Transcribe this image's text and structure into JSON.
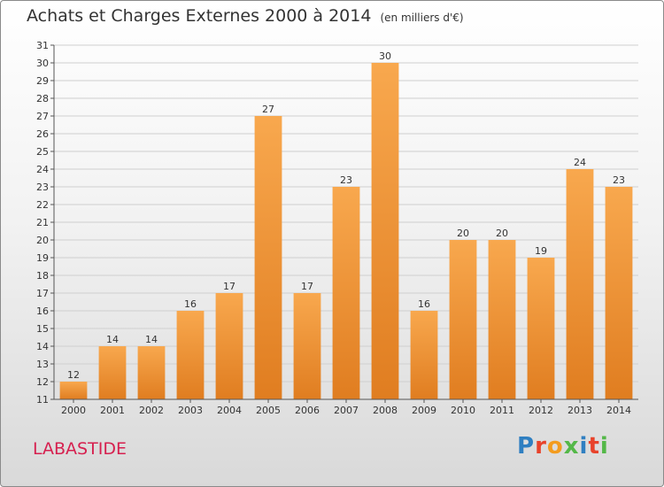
{
  "title": "Achats et Charges Externes 2000 à 2014",
  "unit_note": "(en milliers d'€)",
  "town": "LABASTIDE",
  "logo": {
    "text": "Proxiti",
    "letter_colors": [
      "#2f7fc1",
      "#e8432b",
      "#f39c1f",
      "#54b848",
      "#2f7fc1",
      "#e8432b",
      "#54b848"
    ]
  },
  "colors": {
    "bar_top": "#f8a84e",
    "bar_bottom": "#e07d20",
    "grid": "#cfcfcf",
    "axis": "#555555"
  },
  "chart_data": {
    "type": "bar",
    "categories": [
      "2000",
      "2001",
      "2002",
      "2003",
      "2004",
      "2005",
      "2006",
      "2007",
      "2008",
      "2009",
      "2010",
      "2011",
      "2012",
      "2013",
      "2014"
    ],
    "values": [
      12,
      14,
      14,
      16,
      17,
      27,
      17,
      23,
      30,
      16,
      20,
      20,
      19,
      24,
      23
    ],
    "ylim": [
      11,
      31
    ],
    "ytick_step": 1,
    "grid": true,
    "data_labels": true
  }
}
